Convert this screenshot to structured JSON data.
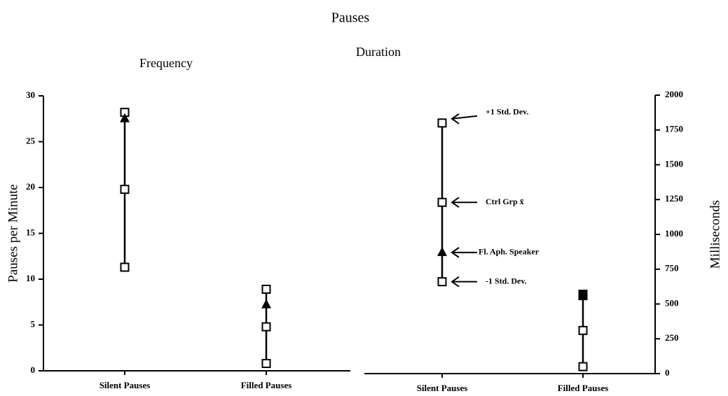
{
  "title": "Pauses",
  "chart_data": [
    {
      "type": "range-dot",
      "title": "Frequency",
      "ylabel": "Pauses per Minute",
      "categories": [
        "Silent Pauses",
        "Filled Pauses"
      ],
      "ylim": [
        0,
        30
      ],
      "yticks": [
        0,
        5,
        10,
        15,
        20,
        25,
        30
      ],
      "series": [
        {
          "color": "#000000",
          "marker": "square",
          "values": [
            28.2,
            8.9
          ]
        },
        {
          "color": "#000000",
          "marker": "square",
          "values": [
            19.8,
            4.8
          ]
        },
        {
          "color": "#000000",
          "marker": "triangle",
          "values": [
            27.5,
            7.2
          ]
        },
        {
          "color": "#000000",
          "marker": "square",
          "values": [
            11.3,
            0.8
          ]
        }
      ]
    },
    {
      "type": "range-dot",
      "title": "Duration",
      "ylabel": "Milliseconds",
      "categories": [
        "Silent Pauses",
        "Filled Pauses"
      ],
      "y2lim": [
        0,
        2000
      ],
      "y2ticks": [
        0,
        250,
        500,
        750,
        1000,
        1250,
        1500,
        1750,
        2000
      ],
      "series": [
        {
          "name": "+1 Std. Dev.",
          "axis": "y2",
          "color": "#000000",
          "marker": "square",
          "values": [
            1800,
            560
          ]
        },
        {
          "name": "Ctrl Grp x̄",
          "axis": "y2",
          "color": "#000000",
          "marker": "square",
          "values": [
            1230,
            310
          ]
        },
        {
          "name": "Fl. Aph. Speaker",
          "axis": "y2",
          "color": "#000000",
          "marker": [
            "triangle",
            "filled-square"
          ],
          "values": [
            870,
            570
          ]
        },
        {
          "name": "-1 Std. Dev.",
          "axis": "y2",
          "color": "#000000",
          "marker": "square",
          "values": [
            660,
            50
          ]
        }
      ]
    }
  ]
}
